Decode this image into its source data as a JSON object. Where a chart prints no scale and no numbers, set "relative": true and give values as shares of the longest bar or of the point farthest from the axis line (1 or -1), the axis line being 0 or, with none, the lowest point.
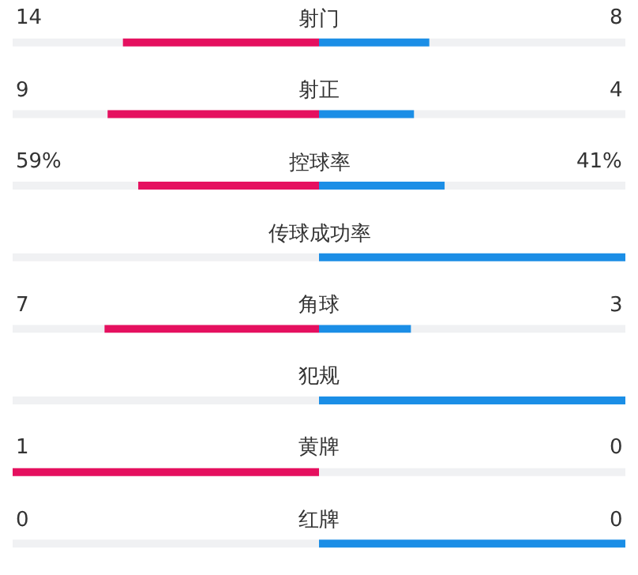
{
  "chart_data": {
    "type": "bar",
    "orientation": "horizontal",
    "relative": true,
    "stacked": true,
    "categories": [
      "射门",
      "射正",
      "控球率",
      "传球成功率",
      "角球",
      "犯规",
      "黄牌",
      "红牌"
    ],
    "series": [
      {
        "color": "#e5105f",
        "values": [
          -0.64,
          -0.69,
          -0.59,
          0,
          -0.7,
          0,
          -1,
          0
        ]
      },
      {
        "color": "#1b8ee6",
        "values": [
          0.36,
          0.31,
          0.41,
          1,
          0.3,
          1,
          0,
          1
        ]
      }
    ],
    "annotations": [
      "14",
      "8",
      "9",
      "4",
      "59%",
      "41%",
      null,
      null,
      "7",
      "3",
      null,
      null,
      "1",
      "0",
      "0",
      "0"
    ]
  }
}
